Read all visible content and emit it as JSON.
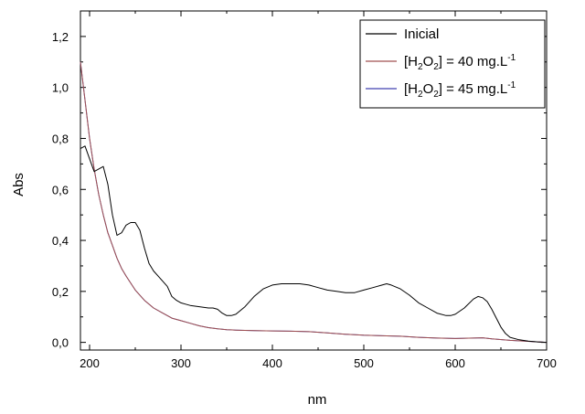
{
  "chart_data": {
    "type": "line",
    "xlabel": "nm",
    "ylabel": "Abs",
    "xlim": [
      190,
      700
    ],
    "ylim": [
      -0.03,
      1.3
    ],
    "x_ticks": [
      200,
      300,
      400,
      500,
      600,
      700
    ],
    "x_tick_labels": [
      "200",
      "300",
      "400",
      "500",
      "600",
      "700"
    ],
    "y_ticks": [
      0.0,
      0.2,
      0.4,
      0.6,
      0.8,
      1.0,
      1.2
    ],
    "y_tick_labels": [
      "0,0",
      "0,2",
      "0,4",
      "0,6",
      "0,8",
      "1,0",
      "1,2"
    ],
    "grid": false,
    "legend_position": "top-right",
    "series": [
      {
        "name": "Inicial",
        "color": "#000000",
        "x": [
          190,
          195,
          200,
          205,
          210,
          215,
          220,
          225,
          230,
          235,
          240,
          245,
          250,
          255,
          260,
          265,
          270,
          275,
          280,
          285,
          290,
          295,
          300,
          305,
          310,
          320,
          330,
          335,
          340,
          345,
          350,
          355,
          360,
          370,
          380,
          390,
          400,
          410,
          420,
          430,
          440,
          450,
          460,
          470,
          480,
          490,
          500,
          510,
          520,
          525,
          530,
          540,
          550,
          560,
          570,
          580,
          590,
          595,
          600,
          610,
          620,
          625,
          630,
          635,
          640,
          645,
          650,
          655,
          660,
          670,
          680,
          690,
          700
        ],
        "y": [
          0.76,
          0.77,
          0.72,
          0.67,
          0.68,
          0.69,
          0.62,
          0.5,
          0.42,
          0.43,
          0.46,
          0.47,
          0.47,
          0.44,
          0.37,
          0.31,
          0.28,
          0.26,
          0.24,
          0.22,
          0.18,
          0.165,
          0.155,
          0.15,
          0.145,
          0.14,
          0.135,
          0.135,
          0.13,
          0.115,
          0.105,
          0.105,
          0.11,
          0.14,
          0.18,
          0.21,
          0.225,
          0.23,
          0.23,
          0.23,
          0.225,
          0.215,
          0.205,
          0.2,
          0.195,
          0.195,
          0.205,
          0.215,
          0.225,
          0.23,
          0.225,
          0.21,
          0.185,
          0.155,
          0.135,
          0.115,
          0.105,
          0.105,
          0.11,
          0.135,
          0.17,
          0.18,
          0.175,
          0.16,
          0.13,
          0.095,
          0.06,
          0.035,
          0.02,
          0.01,
          0.005,
          0.002,
          0.0
        ]
      },
      {
        "name": "[H2O2] = 40 mg.L-1",
        "color": "#a05050",
        "x": [
          190,
          195,
          200,
          205,
          210,
          215,
          220,
          225,
          230,
          235,
          240,
          250,
          260,
          270,
          280,
          290,
          300,
          310,
          320,
          330,
          340,
          350,
          360,
          380,
          400,
          420,
          440,
          460,
          480,
          500,
          520,
          540,
          560,
          580,
          600,
          620,
          630,
          640,
          660,
          680,
          700
        ],
        "y": [
          1.1,
          0.95,
          0.8,
          0.68,
          0.58,
          0.5,
          0.43,
          0.38,
          0.33,
          0.29,
          0.26,
          0.205,
          0.165,
          0.135,
          0.115,
          0.095,
          0.085,
          0.075,
          0.065,
          0.058,
          0.053,
          0.05,
          0.048,
          0.046,
          0.045,
          0.044,
          0.042,
          0.037,
          0.032,
          0.028,
          0.026,
          0.024,
          0.02,
          0.017,
          0.015,
          0.017,
          0.018,
          0.014,
          0.008,
          0.004,
          0.0
        ]
      },
      {
        "name": "[H2O2] = 45 mg.L-1",
        "color": "#4040b0",
        "x": [
          190,
          195,
          200,
          205,
          210,
          215,
          220,
          225,
          230,
          235,
          240,
          250,
          260,
          270,
          280,
          290,
          300,
          310,
          320,
          330,
          340,
          350,
          360,
          380,
          400,
          420,
          440,
          460,
          480,
          500,
          520,
          540,
          560,
          580,
          600,
          620,
          630,
          640,
          660,
          680,
          700
        ],
        "y": [
          1.1,
          0.95,
          0.8,
          0.68,
          0.58,
          0.5,
          0.43,
          0.38,
          0.33,
          0.29,
          0.26,
          0.205,
          0.165,
          0.135,
          0.115,
          0.095,
          0.085,
          0.075,
          0.065,
          0.058,
          0.053,
          0.05,
          0.048,
          0.046,
          0.045,
          0.044,
          0.042,
          0.037,
          0.032,
          0.028,
          0.026,
          0.024,
          0.02,
          0.017,
          0.015,
          0.017,
          0.018,
          0.014,
          0.008,
          0.004,
          0.0
        ]
      }
    ],
    "legend": [
      {
        "prefix": "Inicial",
        "sub1": "",
        "mid": "",
        "sub2": "",
        "rest": "",
        "sup": ""
      },
      {
        "prefix": "[H",
        "sub1": "2",
        "mid": "O",
        "sub2": "2",
        "rest": "] = 40 mg.L",
        "sup": "-1"
      },
      {
        "prefix": "[H",
        "sub1": "2",
        "mid": "O",
        "sub2": "2",
        "rest": "] = 45 mg.L",
        "sup": "-1"
      }
    ]
  }
}
